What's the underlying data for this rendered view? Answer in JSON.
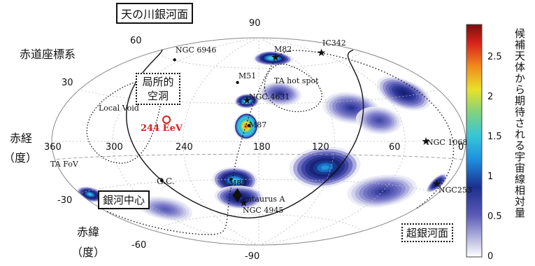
{
  "chart_data": {
    "type": "heatmap",
    "projection": "hammer-aitoff",
    "coordinate_system": "equatorial",
    "ra_ticks": [
      "360",
      "300",
      "240",
      "180",
      "120",
      "60",
      "0"
    ],
    "dec_ticks": [
      "90",
      "60",
      "30",
      "-30",
      "-60",
      "-90"
    ],
    "ra_axis_label": [
      "赤経",
      "（度）"
    ],
    "dec_axis_label": [
      "赤緯",
      "（度）"
    ],
    "colorbar": {
      "label": "候補天体から期待される宇宙線相対量",
      "ticks": [
        "0",
        "0.5",
        "1",
        "1.5",
        "2",
        "2.5"
      ],
      "range": [
        0,
        2.9
      ],
      "colormap": "jet"
    },
    "boxed_labels": {
      "galactic_plane": "天の川銀河面",
      "supergalactic_plane": "超銀河面",
      "local_void_box": [
        "局所的",
        "空洞"
      ],
      "galactic_center": "銀河中心",
      "frame": "赤道座標系"
    },
    "sources": [
      {
        "name": "NGC 6946",
        "ra": 308.7,
        "dec": 60.2,
        "marker": "dot"
      },
      {
        "name": "M82",
        "ra": 148.9,
        "dec": 69.7,
        "marker": "star"
      },
      {
        "name": "IC342",
        "ra": 56.7,
        "dec": 68.1,
        "marker": "star"
      },
      {
        "name": "M51",
        "ra": 202.5,
        "dec": 47.2,
        "marker": "dot"
      },
      {
        "name": "NGC 4631",
        "ra": 190.5,
        "dec": 32.5,
        "marker": "star"
      },
      {
        "name": "M87",
        "ra": 187.7,
        "dec": 12.4,
        "marker": "dot"
      },
      {
        "name": "NGC 1068",
        "ra": 40.7,
        "dec": 0.0,
        "marker": "star"
      },
      {
        "name": "M83",
        "ra": 204.3,
        "dec": -29.9,
        "marker": "dot"
      },
      {
        "name": "Centaurus A",
        "ra": 201.4,
        "dec": -43.0,
        "marker": "diamond"
      },
      {
        "name": "NGC 4945",
        "ra": 196.4,
        "dec": -49.5,
        "marker": "star"
      },
      {
        "name": "NGC253",
        "ra": 11.9,
        "dec": -25.3,
        "marker": "star"
      }
    ],
    "point_labels": {
      "gc": "G.C.",
      "ta_fov": "TA FoV",
      "local_void": "Local Void",
      "ta_hot_spot": "TA hot spot",
      "event": "244 EeV"
    },
    "event": {
      "ra": 255.9,
      "dec": 16.1,
      "energy": "244 EeV",
      "color": "#d42020"
    },
    "blobs": [
      {
        "ra": 190.0,
        "dec": 12.0,
        "level": 2.9,
        "ra_w": 10,
        "dec_w": 11
      },
      {
        "ra": 190.5,
        "dec": 32.0,
        "level": 1.0,
        "ra_w": 11,
        "dec_w": 6
      },
      {
        "ra": 155.0,
        "dec": 69.0,
        "level": 0.95,
        "ra_w": 35,
        "dec_w": 7
      },
      {
        "ra": 201.0,
        "dec": -31.0,
        "level": 0.85,
        "ra_w": 20,
        "dec_w": 11
      },
      {
        "ra": 125.0,
        "dec": -20.0,
        "level": 0.7,
        "ra_w": 30,
        "dec_w": 16
      },
      {
        "ra": 200.0,
        "dec": -45.0,
        "level": 0.55,
        "ra_w": 25,
        "dec_w": 10
      },
      {
        "ra": 40.0,
        "dec": 32.0,
        "level": 0.45,
        "ra_w": 25,
        "dec_w": 12
      },
      {
        "ra": 350.0,
        "dec": -32.0,
        "level": 0.8,
        "ra_w": 15,
        "dec_w": 5
      },
      {
        "ra": 12.0,
        "dec": -25.0,
        "level": 0.6,
        "ra_w": 8,
        "dec_w": 6
      },
      {
        "ra": 100.0,
        "dec": 25.0,
        "level": 0.3,
        "ra_w": 25,
        "dec_w": 12
      },
      {
        "ra": 160.0,
        "dec": 38.0,
        "level": 0.3,
        "ra_w": 20,
        "dec_w": 10
      },
      {
        "ra": 60.0,
        "dec": -35.0,
        "level": 0.3,
        "ra_w": 35,
        "dec_w": 12
      },
      {
        "ra": 80.0,
        "dec": 15.0,
        "level": 0.25,
        "ra_w": 20,
        "dec_w": 10
      },
      {
        "ra": 290.0,
        "dec": -50.0,
        "level": 0.2,
        "ra_w": 30,
        "dec_w": 10
      }
    ]
  }
}
